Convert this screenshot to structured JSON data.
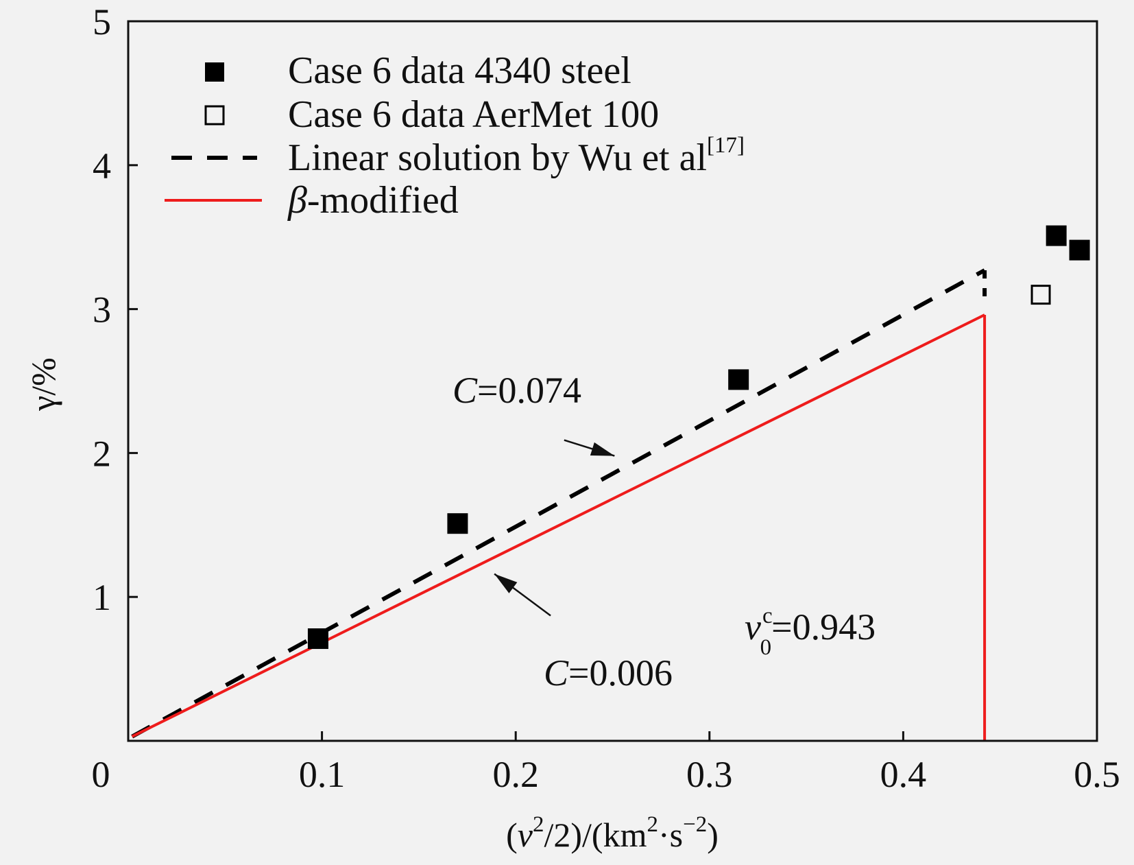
{
  "chart_data": {
    "type": "scatter",
    "xlim": [
      0,
      0.5
    ],
    "ylim": [
      0,
      5
    ],
    "x_ticks": [
      "0",
      "0.1",
      "0.2",
      "0.3",
      "0.4",
      "0.5"
    ],
    "y_ticks": [
      "1",
      "2",
      "3",
      "4",
      "5"
    ],
    "xlabel": "(v²/2)/(km²·s⁻²)",
    "xlabel_parts": {
      "open": "(",
      "v": "v",
      "sup2": "2",
      "mid": "/2)/(km",
      "sup2b": "2",
      "dot": "·s",
      "supneg": "−2",
      "close": ")"
    },
    "ylabel": "γ/%",
    "grid": false,
    "legend_position": "top-left",
    "series": [
      {
        "name": "Case 6 data 4340 steel",
        "marker": "filled-square",
        "color": "#000000",
        "points": [
          [
            0.098,
            0.71
          ],
          [
            0.17,
            1.51
          ],
          [
            0.315,
            2.51
          ],
          [
            0.479,
            3.51
          ],
          [
            0.491,
            3.41
          ]
        ]
      },
      {
        "name": "Case 6 data AerMet 100",
        "marker": "open-square",
        "color": "#000000",
        "points": [
          [
            0.471,
            3.1
          ]
        ]
      },
      {
        "name": "Linear solution by Wu et al",
        "name_sup": "[17]",
        "style": "dashed",
        "color": "#000000",
        "points": [
          [
            0.002,
            0.03
          ],
          [
            0.442,
            3.27
          ]
        ],
        "drop_to": 3.08
      },
      {
        "name": "β-modified",
        "name_parts": {
          "beta": "β",
          "rest": "-modified"
        },
        "style": "solid",
        "color": "#ee1c1c",
        "points": [
          [
            0.002,
            0.03
          ],
          [
            0.442,
            2.96
          ]
        ],
        "drop_to": 0
      }
    ],
    "annotations": [
      {
        "var": "C",
        "text": "=0.074",
        "arrow_from": [
          0.225,
          2.09
        ],
        "arrow_to": [
          0.251,
          1.98
        ]
      },
      {
        "var": "C",
        "text": "=0.006",
        "arrow_from": [
          0.218,
          0.87
        ],
        "arrow_to": [
          0.189,
          1.16
        ]
      },
      {
        "var": "v",
        "sup": "c",
        "sub": "0",
        "text": "=0.943"
      }
    ]
  }
}
